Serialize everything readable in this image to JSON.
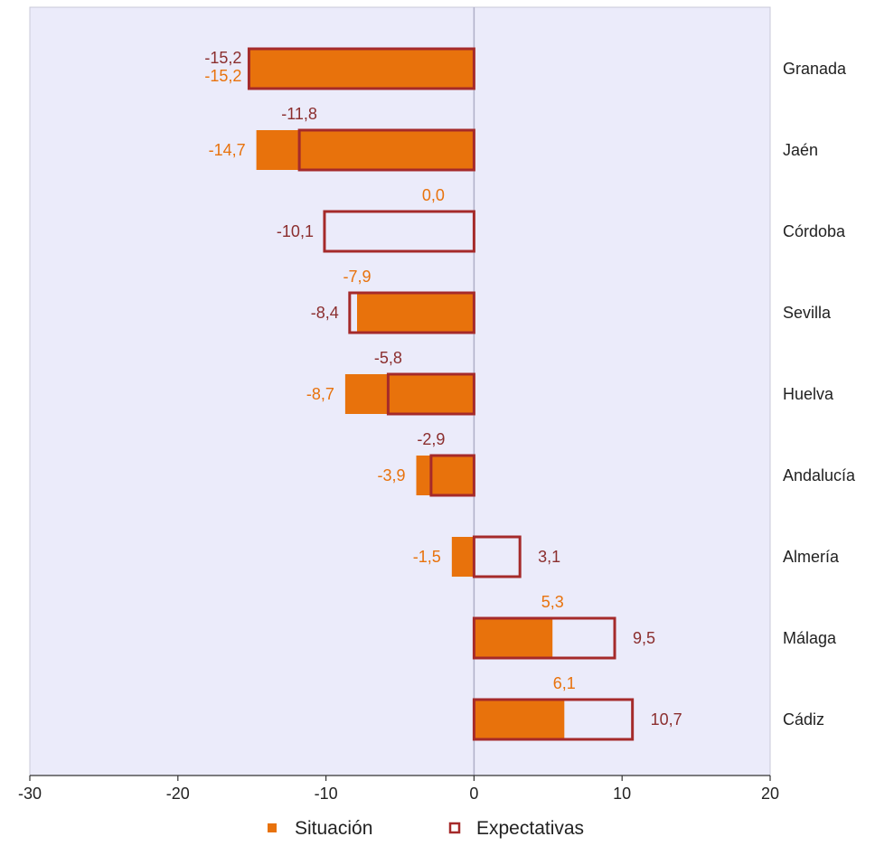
{
  "chart_data": {
    "type": "bar",
    "orientation": "horizontal",
    "categories": [
      "Granada",
      "Jaén",
      "Córdoba",
      "Sevilla",
      "Huelva",
      "Andalucía",
      "Almería",
      "Málaga",
      "Cádiz"
    ],
    "series": [
      {
        "name": "Situación",
        "values": [
          -15.2,
          -14.7,
          0.0,
          -7.9,
          -8.7,
          -3.9,
          -1.5,
          5.3,
          6.1
        ],
        "labels": [
          "-15,2",
          "-14,7",
          "0,0",
          "-7,9",
          "-8,7",
          "-3,9",
          "-1,5",
          "5,3",
          "6,1"
        ]
      },
      {
        "name": "Expectativas",
        "values": [
          -15.2,
          -11.8,
          -10.1,
          -8.4,
          -5.8,
          -2.9,
          3.1,
          9.5,
          10.7
        ],
        "labels": [
          "-15,2",
          "-11,8",
          "-10,1",
          "-8,4",
          "-5,8",
          "-2,9",
          "3,1",
          "9,5",
          "10,7"
        ]
      }
    ],
    "xlim": [
      -30,
      20
    ],
    "xticks": [
      "-30",
      "-20",
      "-10",
      "0",
      "10",
      "20"
    ],
    "title": "",
    "xlabel": "",
    "ylabel": "",
    "grid": false,
    "legend_position": "bottom",
    "colors": {
      "situacion_fill": "#e8720c",
      "expectativas_stroke": "#a52a2a",
      "situacion_label": "#e8720c",
      "expectativas_label": "#8b2e2e",
      "plot_background": "#ebebfa",
      "zero_line": "#b0b0c8",
      "axis": "#333333"
    }
  }
}
